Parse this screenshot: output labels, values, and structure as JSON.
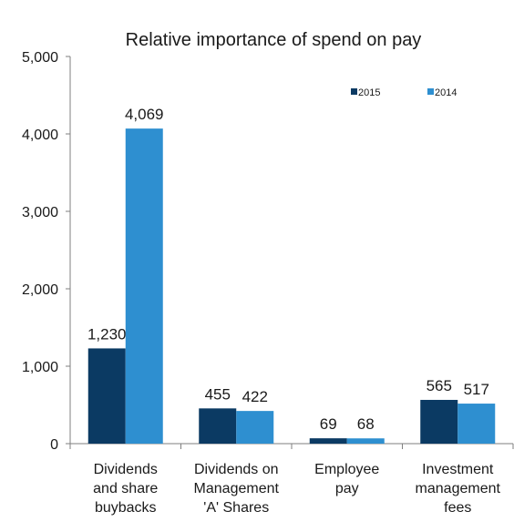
{
  "chart_data": {
    "type": "bar",
    "title": "Relative importance of spend on pay",
    "categories": [
      [
        "Dividends",
        "and share",
        "buybacks"
      ],
      [
        "Dividends on",
        "Management",
        "'A' Shares"
      ],
      [
        "Employee",
        "pay"
      ],
      [
        "Investment",
        "management",
        "fees"
      ]
    ],
    "series": [
      {
        "name": "2015",
        "values": [
          1230,
          455,
          69,
          565
        ],
        "labels": [
          "1,230",
          "455",
          "69",
          "565"
        ],
        "color": "#0b3a63"
      },
      {
        "name": "2014",
        "values": [
          4069,
          422,
          68,
          517
        ],
        "labels": [
          "4,069",
          "422",
          "68",
          "517"
        ],
        "color": "#2e8fd0"
      }
    ],
    "ylim": [
      0,
      5000
    ],
    "yticks": [
      0,
      1000,
      2000,
      3000,
      4000,
      5000
    ],
    "ytick_labels": [
      "0",
      "1,000",
      "2,000",
      "3,000",
      "4,000",
      "5,000"
    ],
    "legend_position": "top-right",
    "grid": false,
    "axis_color": "#7f7f7f"
  }
}
